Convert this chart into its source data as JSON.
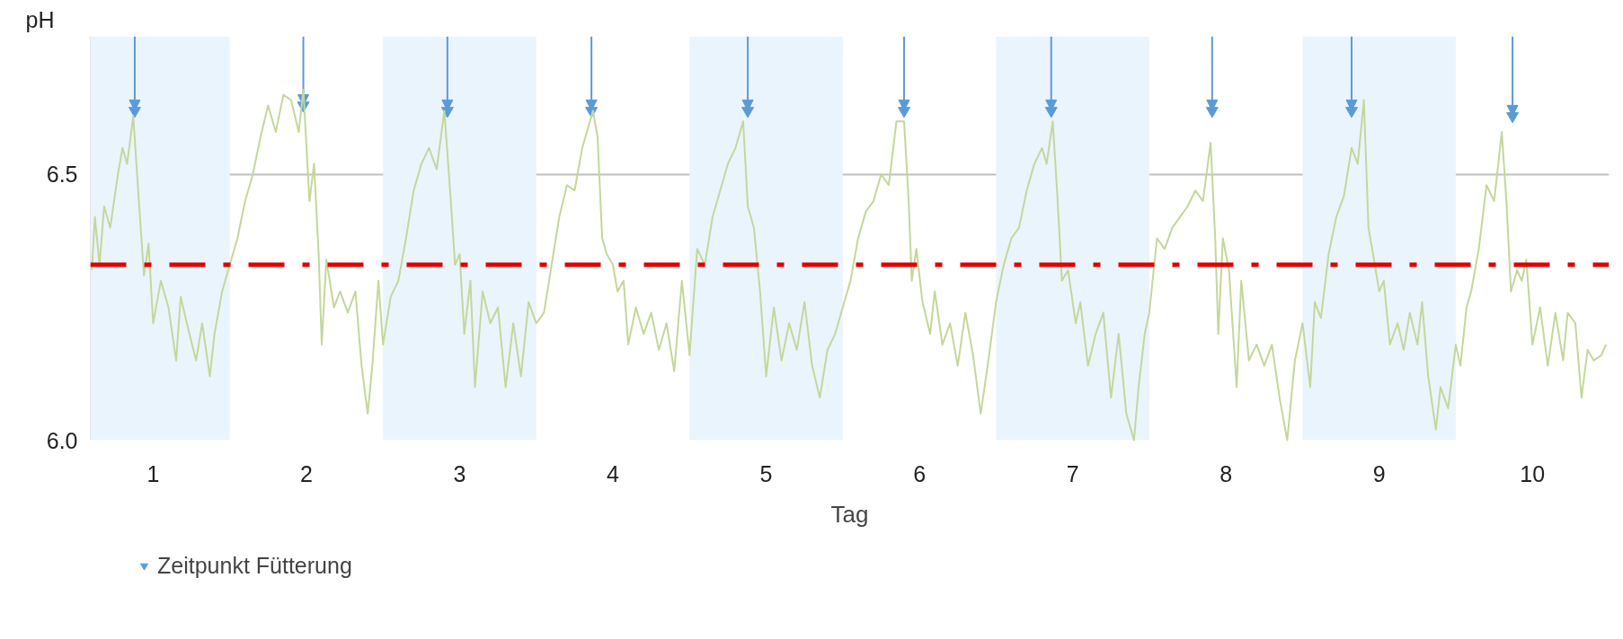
{
  "chart_data": {
    "type": "line",
    "xlabel": "Tag",
    "ylabel": "pH",
    "xlim": [
      0.09,
      10.0
    ],
    "ylim": [
      6.0,
      6.76
    ],
    "xticks": [
      {
        "value": 0.5,
        "label": "1"
      },
      {
        "value": 1.5,
        "label": "2"
      },
      {
        "value": 2.5,
        "label": "3"
      },
      {
        "value": 3.5,
        "label": "4"
      },
      {
        "value": 4.5,
        "label": "5"
      },
      {
        "value": 5.5,
        "label": "6"
      },
      {
        "value": 6.5,
        "label": "7"
      },
      {
        "value": 7.5,
        "label": "8"
      },
      {
        "value": 8.5,
        "label": "9"
      },
      {
        "value": 9.5,
        "label": "10"
      }
    ],
    "yticks": [
      {
        "value": 6.0,
        "label": "6.0"
      },
      6.5
    ],
    "grid": "y",
    "legend": "bottom left",
    "bands": [
      {
        "axis": "x",
        "from": 0,
        "to": 1,
        "label": null,
        "color": "#eaf4fd"
      },
      {
        "axis": "x",
        "from": 2,
        "to": 3,
        "label": null,
        "color": "#eaf4fd"
      },
      {
        "axis": "x",
        "from": 4,
        "to": 5,
        "label": null,
        "color": "#eaf4fd"
      },
      {
        "axis": "x",
        "from": 6,
        "to": 7,
        "label": null,
        "color": "#eaf4fd"
      },
      {
        "axis": "x",
        "from": 8,
        "to": 9,
        "label": null,
        "color": "#eaf4fd"
      }
    ],
    "ref_lines": [
      {
        "axis": "y",
        "value": 6.33,
        "label": null,
        "color": "#e00000",
        "line_style": "dashdot"
      }
    ],
    "series": [
      {
        "color": "#c4d79b",
        "x": [
          0.1,
          0.12,
          0.15,
          0.18,
          0.22,
          0.27,
          0.3,
          0.33,
          0.37,
          0.4,
          0.44,
          0.47,
          0.5,
          0.55,
          0.6,
          0.65,
          0.68,
          0.72,
          0.78,
          0.82,
          0.87,
          0.9,
          0.95,
          1.0,
          1.05,
          1.1,
          1.15,
          1.2,
          1.25,
          1.3,
          1.35,
          1.4,
          1.45,
          1.48,
          1.52,
          1.55,
          1.58,
          1.6,
          1.63,
          1.68,
          1.72,
          1.77,
          1.82,
          1.86,
          1.9,
          1.93,
          1.97,
          2.0,
          2.05,
          2.1,
          2.15,
          2.2,
          2.25,
          2.3,
          2.35,
          2.4,
          2.44,
          2.47,
          2.5,
          2.53,
          2.57,
          2.6,
          2.65,
          2.7,
          2.75,
          2.8,
          2.85,
          2.9,
          2.95,
          3.0,
          3.05,
          3.1,
          3.15,
          3.2,
          3.25,
          3.3,
          3.37,
          3.4,
          3.43,
          3.46,
          3.5,
          3.53,
          3.57,
          3.6,
          3.65,
          3.7,
          3.75,
          3.8,
          3.85,
          3.9,
          3.95,
          4.0,
          4.05,
          4.1,
          4.15,
          4.2,
          4.25,
          4.3,
          4.35,
          4.38,
          4.42,
          4.46,
          4.5,
          4.55,
          4.6,
          4.65,
          4.7,
          4.75,
          4.8,
          4.85,
          4.9,
          4.95,
          5.0,
          5.05,
          5.1,
          5.15,
          5.2,
          5.25,
          5.3,
          5.35,
          5.4,
          5.43,
          5.45,
          5.48,
          5.52,
          5.57,
          5.6,
          5.65,
          5.7,
          5.75,
          5.8,
          5.85,
          5.9,
          5.95,
          6.0,
          6.05,
          6.1,
          6.15,
          6.2,
          6.25,
          6.3,
          6.33,
          6.37,
          6.4,
          6.43,
          6.47,
          6.52,
          6.55,
          6.6,
          6.65,
          6.7,
          6.75,
          6.8,
          6.85,
          6.9,
          6.93,
          6.97,
          7.0,
          7.05,
          7.1,
          7.15,
          7.2,
          7.25,
          7.3,
          7.35,
          7.4,
          7.43,
          7.45,
          7.48,
          7.52,
          7.57,
          7.6,
          7.65,
          7.7,
          7.75,
          7.8,
          7.85,
          7.9,
          7.95,
          8.0,
          8.05,
          8.08,
          8.12,
          8.17,
          8.22,
          8.27,
          8.32,
          8.36,
          8.4,
          8.43,
          8.46,
          8.5,
          8.53,
          8.57,
          8.62,
          8.66,
          8.7,
          8.75,
          8.78,
          8.82,
          8.87,
          8.9,
          8.95,
          9.0,
          9.03,
          9.07,
          9.1,
          9.15,
          9.2,
          9.25,
          9.3,
          9.33,
          9.36,
          9.4,
          9.43,
          9.46,
          9.5,
          9.55,
          9.6,
          9.65,
          9.7,
          9.73,
          9.78,
          9.82,
          9.86,
          9.9,
          9.95,
          9.98
        ],
        "values": [
          6.32,
          6.42,
          6.33,
          6.44,
          6.4,
          6.5,
          6.55,
          6.52,
          6.61,
          6.48,
          6.31,
          6.37,
          6.22,
          6.3,
          6.25,
          6.15,
          6.27,
          6.22,
          6.15,
          6.22,
          6.12,
          6.2,
          6.28,
          6.33,
          6.38,
          6.45,
          6.5,
          6.57,
          6.63,
          6.58,
          6.65,
          6.64,
          6.58,
          6.66,
          6.45,
          6.52,
          6.35,
          6.18,
          6.34,
          6.25,
          6.28,
          6.24,
          6.28,
          6.14,
          6.05,
          6.14,
          6.3,
          6.18,
          6.27,
          6.3,
          6.38,
          6.47,
          6.52,
          6.55,
          6.51,
          6.62,
          6.46,
          6.33,
          6.35,
          6.2,
          6.3,
          6.1,
          6.28,
          6.22,
          6.25,
          6.1,
          6.22,
          6.12,
          6.26,
          6.22,
          6.24,
          6.33,
          6.42,
          6.48,
          6.47,
          6.55,
          6.62,
          6.57,
          6.38,
          6.35,
          6.33,
          6.28,
          6.3,
          6.18,
          6.25,
          6.2,
          6.24,
          6.17,
          6.22,
          6.13,
          6.3,
          6.16,
          6.36,
          6.33,
          6.42,
          6.47,
          6.52,
          6.55,
          6.6,
          6.44,
          6.4,
          6.28,
          6.12,
          6.25,
          6.15,
          6.22,
          6.17,
          6.26,
          6.14,
          6.08,
          6.17,
          6.2,
          6.25,
          6.3,
          6.38,
          6.43,
          6.45,
          6.5,
          6.48,
          6.6,
          6.6,
          6.45,
          6.3,
          6.36,
          6.26,
          6.2,
          6.28,
          6.18,
          6.22,
          6.14,
          6.24,
          6.16,
          6.05,
          6.15,
          6.26,
          6.33,
          6.38,
          6.4,
          6.47,
          6.52,
          6.55,
          6.52,
          6.6,
          6.46,
          6.3,
          6.32,
          6.22,
          6.26,
          6.14,
          6.2,
          6.24,
          6.08,
          6.2,
          6.05,
          6.0,
          6.1,
          6.2,
          6.24,
          6.38,
          6.36,
          6.4,
          6.42,
          6.44,
          6.47,
          6.45,
          6.56,
          6.38,
          6.2,
          6.38,
          6.32,
          6.1,
          6.3,
          6.15,
          6.18,
          6.14,
          6.18,
          6.08,
          6.0,
          6.15,
          6.22,
          6.1,
          6.26,
          6.23,
          6.35,
          6.42,
          6.46,
          6.55,
          6.52,
          6.64,
          6.4,
          6.35,
          6.28,
          6.3,
          6.18,
          6.22,
          6.17,
          6.24,
          6.18,
          6.26,
          6.12,
          6.02,
          6.1,
          6.06,
          6.18,
          6.14,
          6.25,
          6.28,
          6.36,
          6.48,
          6.45,
          6.58,
          6.45,
          6.28,
          6.32,
          6.3,
          6.34,
          6.18,
          6.25,
          6.14,
          6.24,
          6.15,
          6.24,
          6.22,
          6.08,
          6.17,
          6.15,
          6.16,
          6.18
        ]
      },
      {
        "type": "scatter",
        "name": "Zeitpunkt Fütterung",
        "color": "#5b9bd5",
        "marker": "triangle",
        "x": [
          0.38,
          1.48,
          2.42,
          3.36,
          4.38,
          5.4,
          6.36,
          7.41,
          8.32,
          9.37
        ],
        "values": [
          6.62,
          6.63,
          6.62,
          6.62,
          6.62,
          6.62,
          6.62,
          6.62,
          6.62,
          6.61
        ]
      }
    ]
  }
}
